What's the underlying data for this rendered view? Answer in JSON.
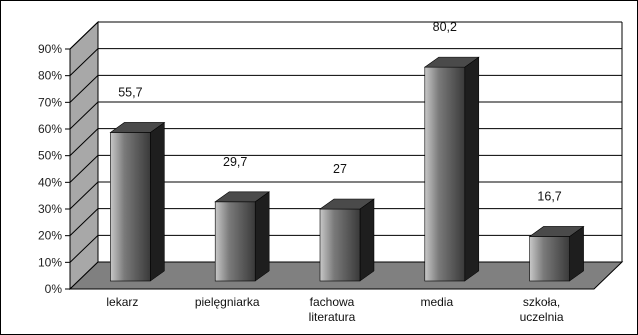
{
  "chart_data": {
    "type": "bar",
    "categories": [
      [
        "lekarz"
      ],
      [
        "pielęgniarka"
      ],
      [
        "fachowa",
        "literatura"
      ],
      [
        "media"
      ],
      [
        "szkoła,",
        "uczelnia"
      ]
    ],
    "values": [
      55.7,
      29.7,
      27,
      80.2,
      16.7
    ],
    "value_labels": [
      "55,7",
      "29,7",
      "27",
      "80,2",
      "16,7"
    ],
    "y_ticks": [
      "0%",
      "10%",
      "20%",
      "30%",
      "40%",
      "50%",
      "60%",
      "70%",
      "80%",
      "90%"
    ],
    "ylim": [
      0,
      90
    ],
    "grid": true,
    "legend": false,
    "bar_style": "3d-cylinder",
    "colors": {
      "wall": "#a8a8a8",
      "floor": "#808080",
      "gridline": "#000000",
      "bar_light": "#c8c8c8",
      "bar_mid": "#7a7a7a",
      "bar_dark": "#3a3a3a",
      "bar_side": "#1e1e1e",
      "frame": "#000000"
    }
  }
}
